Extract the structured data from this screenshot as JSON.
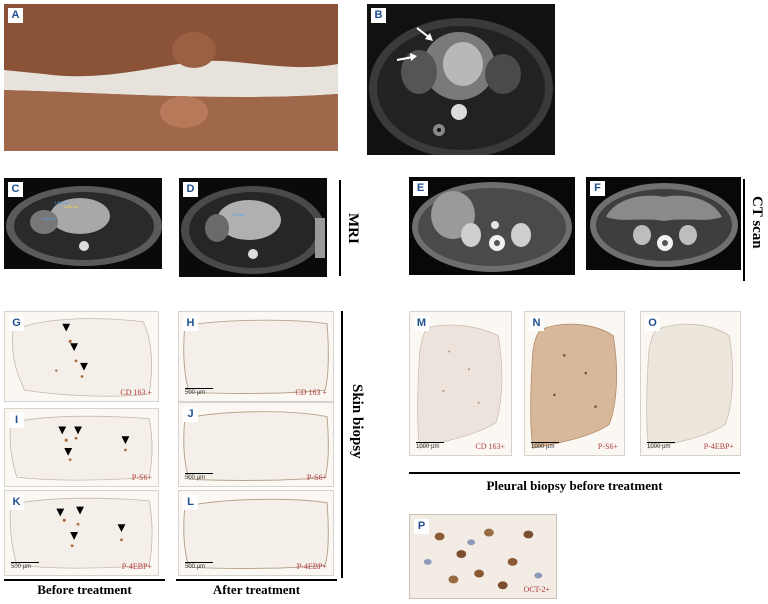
{
  "panels": {
    "A": {
      "letter": "A"
    },
    "B": {
      "letter": "B"
    },
    "C": {
      "letter": "C"
    },
    "D": {
      "letter": "D"
    },
    "E": {
      "letter": "E"
    },
    "F": {
      "letter": "F"
    },
    "G": {
      "letter": "G",
      "stain": "CD 163 +"
    },
    "H": {
      "letter": "H",
      "stain": "CD 163 +",
      "scale": "500 µm"
    },
    "I": {
      "letter": "I",
      "stain": "P-S6+"
    },
    "J": {
      "letter": "J",
      "stain": "P-S6+",
      "scale": "500 µm"
    },
    "K": {
      "letter": "K",
      "stain": "P-4EBP+",
      "scale": "500 µm"
    },
    "L": {
      "letter": "L",
      "stain": "P-4EBP+",
      "scale": "500 µm"
    },
    "M": {
      "letter": "M",
      "stain": "CD 163+",
      "scale": "1000 µm"
    },
    "N": {
      "letter": "N",
      "stain": "P-S6+",
      "scale": "1000 µm"
    },
    "O": {
      "letter": "O",
      "stain": "P-4EBP+",
      "scale": "1000 µm"
    },
    "P": {
      "letter": "P",
      "stain": "OCT-2+"
    }
  },
  "side_labels": {
    "mri": "MRI",
    "ct": "CT scan",
    "skin": "Skin biopsy"
  },
  "captions": {
    "before": "Before  treatment",
    "after": "After treatment",
    "pleural": "Pleural biopsy before treatment"
  },
  "colors": {
    "letter": "#1f4f8f",
    "stain_label": "#b03a3a",
    "ihc_brown": "#a86a3c"
  }
}
